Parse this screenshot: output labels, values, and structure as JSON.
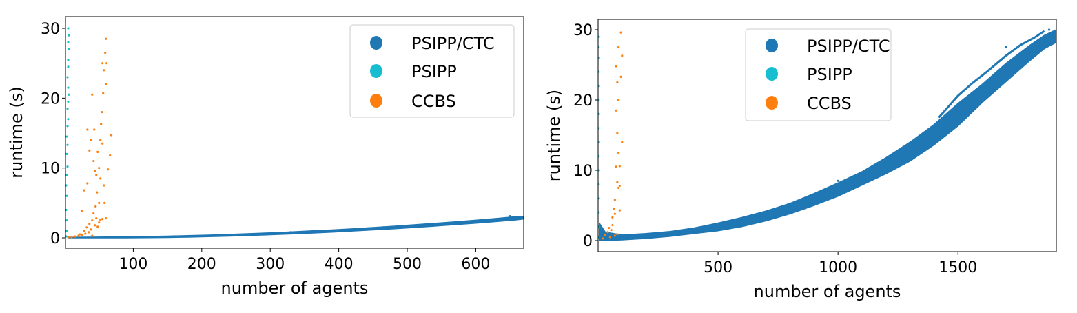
{
  "colors": {
    "psipp_ctc": "#1f77b4",
    "psipp": "#17becf",
    "ccbs": "#ff7f0e"
  },
  "chart_data": [
    {
      "type": "scatter",
      "xlabel": "number of agents",
      "ylabel": "runtime (s)",
      "xlim": [
        1,
        670
      ],
      "ylim": [
        -1.48,
        31.68
      ],
      "xticks": [
        100,
        200,
        300,
        400,
        500,
        600
      ],
      "yticks": [
        0,
        10,
        20,
        30
      ],
      "legend_position": "top-right",
      "legend": [
        "PSIPP/CTC",
        "PSIPP",
        "CCBS"
      ],
      "series": [
        {
          "name": "PSIPP/CTC",
          "color_key": "psipp_ctc",
          "band": [
            [
              5,
              0,
              0.08
            ],
            [
              30,
              0,
              0.1
            ],
            [
              60,
              0,
              0.12
            ],
            [
              90,
              0,
              0.15
            ],
            [
              120,
              0.02,
              0.2
            ],
            [
              150,
              0.05,
              0.25
            ],
            [
              180,
              0.1,
              0.32
            ],
            [
              210,
              0.17,
              0.4
            ],
            [
              240,
              0.25,
              0.5
            ],
            [
              270,
              0.33,
              0.6
            ],
            [
              300,
              0.44,
              0.72
            ],
            [
              330,
              0.55,
              0.85
            ],
            [
              360,
              0.68,
              1.0
            ],
            [
              390,
              0.82,
              1.14
            ],
            [
              420,
              0.97,
              1.3
            ],
            [
              450,
              1.13,
              1.48
            ],
            [
              480,
              1.3,
              1.67
            ],
            [
              510,
              1.48,
              1.87
            ],
            [
              540,
              1.68,
              2.08
            ],
            [
              570,
              1.89,
              2.3
            ],
            [
              600,
              2.1,
              2.53
            ],
            [
              630,
              2.33,
              2.78
            ],
            [
              660,
              2.58,
              3.05
            ],
            [
              670,
              2.7,
              3.1
            ]
          ],
          "points": [
            [
              130,
              0.15
            ],
            [
              330,
              0.8
            ],
            [
              465,
              1.5
            ],
            [
              610,
              2.5
            ],
            [
              650,
              3.1
            ]
          ]
        },
        {
          "name": "PSIPP",
          "color_key": "psipp",
          "points": [
            [
              2,
              0.2
            ],
            [
              3,
              1
            ],
            [
              3,
              2.5
            ],
            [
              2,
              4
            ],
            [
              3,
              6
            ],
            [
              2,
              7.5
            ],
            [
              3,
              9
            ],
            [
              4,
              10.2
            ],
            [
              3,
              12
            ],
            [
              4,
              13.3
            ],
            [
              3,
              14.5
            ],
            [
              4,
              16
            ],
            [
              5,
              17
            ],
            [
              4,
              18.5
            ],
            [
              5,
              19.5
            ],
            [
              6,
              20.5
            ],
            [
              5,
              21.5
            ],
            [
              4,
              23
            ],
            [
              5,
              24.5
            ],
            [
              5,
              25.5
            ],
            [
              6,
              27
            ],
            [
              5,
              28
            ],
            [
              6,
              29
            ],
            [
              5,
              30
            ]
          ]
        },
        {
          "name": "CCBS",
          "color_key": "ccbs",
          "points": [
            [
              5,
              0.1
            ],
            [
              10,
              0.1
            ],
            [
              15,
              0.2
            ],
            [
              20,
              0.3
            ],
            [
              22,
              0.5
            ],
            [
              25,
              0.4
            ],
            [
              28,
              1
            ],
            [
              30,
              0.6
            ],
            [
              32,
              1.5
            ],
            [
              35,
              0.8
            ],
            [
              36,
              2
            ],
            [
              38,
              1.2
            ],
            [
              40,
              2.5
            ],
            [
              40,
              0.3
            ],
            [
              42,
              3.5
            ],
            [
              44,
              1.8
            ],
            [
              45,
              4.5
            ],
            [
              46,
              2.8
            ],
            [
              48,
              1.6
            ],
            [
              50,
              2.2
            ],
            [
              50,
              5
            ],
            [
              52,
              2.6
            ],
            [
              55,
              2.7
            ],
            [
              60,
              2.8
            ],
            [
              25,
              3.8
            ],
            [
              28,
              6.8
            ],
            [
              33,
              7.8
            ],
            [
              36,
              12.5
            ],
            [
              38,
              14
            ],
            [
              40,
              20.5
            ],
            [
              42,
              11
            ],
            [
              43,
              15.5
            ],
            [
              44,
              9.6
            ],
            [
              46,
              9
            ],
            [
              47,
              6.5
            ],
            [
              48,
              12.3
            ],
            [
              50,
              10
            ],
            [
              52,
              14
            ],
            [
              53,
              16.3
            ],
            [
              54,
              18
            ],
            [
              55,
              13.5
            ],
            [
              55,
              25
            ],
            [
              56,
              20.7
            ],
            [
              57,
              7.5
            ],
            [
              58,
              5
            ],
            [
              59,
              26.5
            ],
            [
              60,
              28.5
            ],
            [
              60,
              22
            ],
            [
              61,
              25
            ],
            [
              63,
              9.8
            ],
            [
              66,
              11.8
            ],
            [
              68,
              14.7
            ],
            [
              33,
              15.5
            ],
            [
              52,
              8.5
            ],
            [
              57,
              24
            ]
          ]
        }
      ]
    },
    {
      "type": "scatter",
      "xlabel": "number of agents",
      "ylabel": "runtime (s)",
      "xlim": [
        0,
        1910
      ],
      "ylim": [
        -1.57,
        31.47
      ],
      "xticks": [
        500,
        1000,
        1500
      ],
      "yticks": [
        0,
        10,
        20,
        30
      ],
      "legend_position": "top-center",
      "legend": [
        "PSIPP/CTC",
        "PSIPP",
        "CCBS"
      ],
      "series": [
        {
          "name": "PSIPP/CTC",
          "color_key": "psipp_ctc",
          "band": [
            [
              5,
              0,
              2.5
            ],
            [
              30,
              0,
              1.2
            ],
            [
              100,
              0.1,
              0.8
            ],
            [
              200,
              0.3,
              1.0
            ],
            [
              300,
              0.6,
              1.3
            ],
            [
              400,
              1.0,
              1.8
            ],
            [
              500,
              1.4,
              2.5
            ],
            [
              600,
              2.0,
              3.3
            ],
            [
              700,
              2.8,
              4.2
            ],
            [
              800,
              3.8,
              5.3
            ],
            [
              900,
              5.0,
              6.7
            ],
            [
              1000,
              6.3,
              8.2
            ],
            [
              1100,
              7.9,
              9.8
            ],
            [
              1200,
              9.5,
              11.8
            ],
            [
              1300,
              11.3,
              14.0
            ],
            [
              1400,
              13.6,
              16.5
            ],
            [
              1500,
              16.3,
              19.5
            ],
            [
              1600,
              19.6,
              22.2
            ],
            [
              1700,
              22.6,
              25.2
            ],
            [
              1800,
              25.6,
              27.8
            ],
            [
              1860,
              27.3,
              29.2
            ],
            [
              1910,
              28.2,
              30.0
            ]
          ],
          "upper_branch": [
            [
              1420,
              17.5
            ],
            [
              1500,
              20.6
            ],
            [
              1560,
              22.4
            ],
            [
              1620,
              24.0
            ],
            [
              1700,
              26.3
            ],
            [
              1760,
              27.8
            ],
            [
              1820,
              28.9
            ],
            [
              1860,
              29.8
            ]
          ],
          "points": [
            [
              1000,
              8.5
            ],
            [
              1150,
              10.3
            ],
            [
              1700,
              27.5
            ],
            [
              1880,
              30
            ]
          ]
        },
        {
          "name": "PSIPP",
          "color_key": "psipp",
          "points": [
            [
              2,
              0.5
            ],
            [
              3,
              2
            ],
            [
              2,
              4
            ],
            [
              3,
              6
            ],
            [
              2,
              8
            ],
            [
              3,
              10
            ],
            [
              2,
              12
            ],
            [
              3,
              14
            ],
            [
              2,
              16
            ],
            [
              3,
              18
            ],
            [
              2,
              20
            ],
            [
              3,
              22
            ],
            [
              2,
              24
            ],
            [
              3,
              26
            ],
            [
              2,
              27.5
            ],
            [
              3,
              29
            ]
          ]
        },
        {
          "name": "CCBS",
          "color_key": "ccbs",
          "points": [
            [
              20,
              0.3
            ],
            [
              30,
              0.8
            ],
            [
              40,
              1.2
            ],
            [
              50,
              0.5
            ],
            [
              55,
              1.5
            ],
            [
              60,
              2.2
            ],
            [
              70,
              0.7
            ],
            [
              80,
              0.9
            ],
            [
              60,
              3.3
            ],
            [
              65,
              4.5
            ],
            [
              70,
              5.8
            ],
            [
              85,
              7.5
            ],
            [
              90,
              7.8
            ],
            [
              80,
              8.3
            ],
            [
              75,
              10.5
            ],
            [
              90,
              10.6
            ],
            [
              85,
              12.5
            ],
            [
              80,
              15.3
            ],
            [
              100,
              14
            ],
            [
              75,
              18.5
            ],
            [
              85,
              20
            ],
            [
              80,
              22.5
            ],
            [
              95,
              23.3
            ],
            [
              75,
              24.8
            ],
            [
              100,
              26.3
            ],
            [
              85,
              27.5
            ],
            [
              95,
              29.6
            ],
            [
              70,
              3.8
            ],
            [
              90,
              4.3
            ],
            [
              45,
              1.8
            ]
          ]
        }
      ]
    }
  ]
}
